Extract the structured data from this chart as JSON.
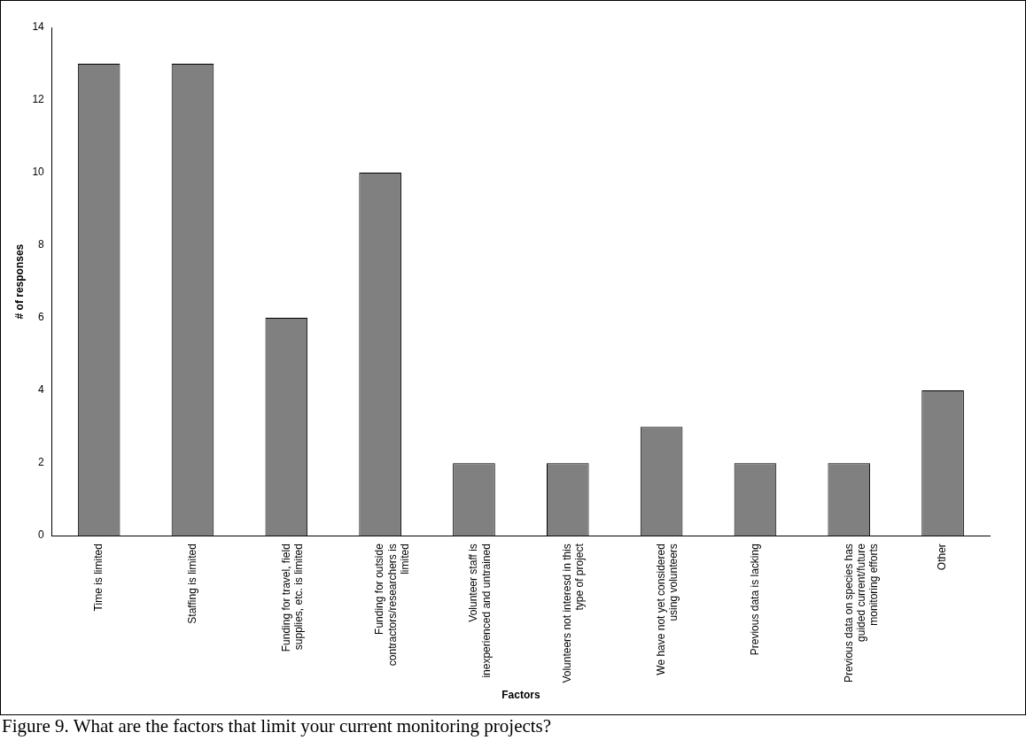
{
  "chart_data": {
    "type": "bar",
    "xlabel": "Factors",
    "ylabel": "# of responses",
    "categories": [
      "Time is limited",
      "Staffing is limited",
      "Funding for travel, field supplies, etc. is limited",
      "Funding for outside contractors/researchers is limited",
      "Volunteer staff is inexperienced and untrained",
      "Volunteers not interesd in this type of project",
      "We have not yet considered using volunteers",
      "Previous data is lacking",
      "Previous data on species has guided current/future monitoring efforts",
      "Other"
    ],
    "values": [
      13,
      13,
      6,
      10,
      2,
      2,
      3,
      2,
      2,
      4
    ],
    "color": "#808080",
    "ylim": [
      0,
      14
    ],
    "yticks": [
      0,
      2,
      4,
      6,
      8,
      10,
      12,
      14
    ],
    "grid": false,
    "legend": false,
    "annotations": [
      "Figure 9. What are the factors that limit your current monitoring projects?"
    ]
  }
}
